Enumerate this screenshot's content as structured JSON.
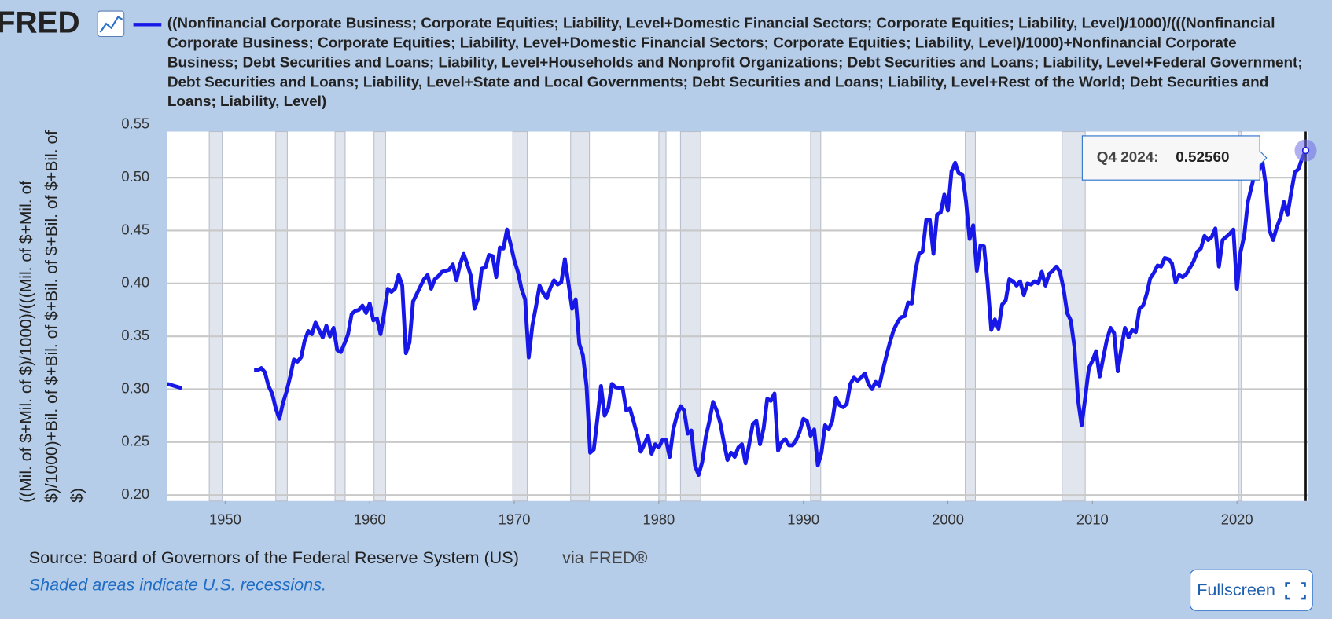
{
  "chart_data": {
    "type": "line",
    "logo": "FRED",
    "ylabel": "((Mil. of $+Mil. of $)/1000)/(((Mil. of $+Mil. of $)/1000)+Bil. of $+Bil. of $+Bil. of $+Bil. of $+Bil. of $)",
    "source": "Source: Board of Governors of the Federal Reserve System (US)",
    "source_via": "via FRED®",
    "note": "Shaded areas indicate U.S. recessions.",
    "button": "Fullscreen",
    "tooltip": {
      "label": "Q4 2024:",
      "value_label": "0.52560"
    },
    "xlim": [
      1946,
      2024.75
    ],
    "ylim": [
      0.2,
      0.55
    ],
    "xticks": [
      1950,
      1960,
      1970,
      1980,
      1990,
      2000,
      2010,
      2020
    ],
    "yticks": [
      {
        "value": 0.2,
        "label": "0.20"
      },
      {
        "value": 0.25,
        "label": "0.25"
      },
      {
        "value": 0.3,
        "label": "0.30"
      },
      {
        "value": 0.35,
        "label": "0.35"
      },
      {
        "value": 0.4,
        "label": "0.40"
      },
      {
        "value": 0.45,
        "label": "0.45"
      },
      {
        "value": 0.5,
        "label": "0.50"
      },
      {
        "value": 0.55,
        "label": "0.55"
      }
    ],
    "grid": true,
    "recessions": [
      [
        1948.9,
        1949.8
      ],
      [
        1953.5,
        1954.3
      ],
      [
        1957.6,
        1958.3
      ],
      [
        1960.3,
        1961.1
      ],
      [
        1969.9,
        1970.9
      ],
      [
        1973.9,
        1975.2
      ],
      [
        1980.0,
        1980.5
      ],
      [
        1981.5,
        1982.9
      ],
      [
        1990.5,
        1991.2
      ],
      [
        2001.2,
        2001.9
      ],
      [
        2007.9,
        2009.5
      ],
      [
        2020.1,
        2020.3
      ]
    ],
    "x": [
      1946,
      1946.5,
      1947,
      1949.5,
      1952,
      1952.25,
      1952.5,
      1952.75,
      1953,
      1953.25,
      1953.5,
      1953.75,
      1954,
      1954.25,
      1954.5,
      1954.75,
      1955,
      1955.25,
      1955.5,
      1955.75,
      1956,
      1956.25,
      1956.5,
      1956.75,
      1957,
      1957.25,
      1957.5,
      1957.75,
      1958,
      1958.25,
      1958.5,
      1958.75,
      1959,
      1959.25,
      1959.5,
      1959.75,
      1960,
      1960.25,
      1960.5,
      1960.75,
      1961,
      1961.25,
      1961.5,
      1961.75,
      1962,
      1962.25,
      1962.5,
      1962.75,
      1963,
      1963.25,
      1963.5,
      1963.75,
      1964,
      1964.25,
      1964.5,
      1964.75,
      1965,
      1965.25,
      1965.5,
      1965.75,
      1966,
      1966.25,
      1966.5,
      1966.75,
      1967,
      1967.25,
      1967.5,
      1967.75,
      1968,
      1968.25,
      1968.5,
      1968.75,
      1969,
      1969.25,
      1969.5,
      1969.75,
      1970,
      1970.25,
      1970.5,
      1970.75,
      1971,
      1971.25,
      1971.5,
      1971.75,
      1972,
      1972.25,
      1972.5,
      1972.75,
      1973,
      1973.25,
      1973.5,
      1973.75,
      1974,
      1974.25,
      1974.5,
      1974.75,
      1975,
      1975.25,
      1975.5,
      1975.75,
      1976,
      1976.25,
      1976.5,
      1976.75,
      1977,
      1977.25,
      1977.5,
      1977.75,
      1978,
      1978.25,
      1978.5,
      1978.75,
      1979,
      1979.25,
      1979.5,
      1979.75,
      1980,
      1980.25,
      1980.5,
      1980.75,
      1981,
      1981.25,
      1981.5,
      1981.75,
      1982,
      1982.25,
      1982.5,
      1982.75,
      1983,
      1983.25,
      1983.5,
      1983.75,
      1984,
      1984.25,
      1984.5,
      1984.75,
      1985,
      1985.25,
      1985.5,
      1985.75,
      1986,
      1986.25,
      1986.5,
      1986.75,
      1987,
      1987.25,
      1987.5,
      1987.75,
      1988,
      1988.25,
      1988.5,
      1988.75,
      1989,
      1989.25,
      1989.5,
      1989.75,
      1990,
      1990.25,
      1990.5,
      1990.75,
      1991,
      1991.25,
      1991.5,
      1991.75,
      1992,
      1992.25,
      1992.5,
      1992.75,
      1993,
      1993.25,
      1993.5,
      1993.75,
      1994,
      1994.25,
      1994.5,
      1994.75,
      1995,
      1995.25,
      1995.5,
      1995.75,
      1996,
      1996.25,
      1996.5,
      1996.75,
      1997,
      1997.25,
      1997.5,
      1997.75,
      1998,
      1998.25,
      1998.5,
      1998.75,
      1999,
      1999.25,
      1999.5,
      1999.75,
      2000,
      2000.25,
      2000.5,
      2000.75,
      2001,
      2001.25,
      2001.5,
      2001.75,
      2002,
      2002.25,
      2002.5,
      2002.75,
      2003,
      2003.25,
      2003.5,
      2003.75,
      2004,
      2004.25,
      2004.5,
      2004.75,
      2005,
      2005.25,
      2005.5,
      2005.75,
      2006,
      2006.25,
      2006.5,
      2006.75,
      2007,
      2007.25,
      2007.5,
      2007.75,
      2008,
      2008.25,
      2008.5,
      2008.75,
      2009,
      2009.25,
      2009.5,
      2009.75,
      2010,
      2010.25,
      2010.5,
      2010.75,
      2011,
      2011.25,
      2011.5,
      2011.75,
      2012,
      2012.25,
      2012.5,
      2012.75,
      2013,
      2013.25,
      2013.5,
      2013.75,
      2014,
      2014.25,
      2014.5,
      2014.75,
      2015,
      2015.25,
      2015.5,
      2015.75,
      2016,
      2016.25,
      2016.5,
      2016.75,
      2017,
      2017.25,
      2017.5,
      2017.75,
      2018,
      2018.25,
      2018.5,
      2018.75,
      2019,
      2019.25,
      2019.5,
      2019.75,
      2020,
      2020.25,
      2020.5,
      2020.75,
      2021,
      2021.25,
      2021.5,
      2021.75,
      2022,
      2022.25,
      2022.5,
      2022.75,
      2023,
      2023.25,
      2023.5,
      2023.75,
      2024,
      2024.25,
      2024.5,
      2024.75
    ],
    "series": [
      {
        "name": "((Nonfinancial Corporate Business; Corporate Equities; Liability, Level+Domestic Financial Sectors; Corporate Equities; Liability, Level)/1000)/(((Nonfinancial Corporate Business; Corporate Equities; Liability, Level+Domestic Financial Sectors; Corporate Equities; Liability, Level)/1000)+Nonfinancial Corporate Business; Debt Securities and Loans; Liability, Level+Households and Nonprofit Organizations; Debt Securities and Loans; Liability, Level+Federal Government; Debt Securities and Loans; Liability, Level+State and Local Governments; Debt Securities and Loans; Liability, Level+Rest of the World; Debt Securities and Loans; Liability, Level)",
        "color": "#1717e8",
        "values": [
          0.305,
          0.303,
          0.301,
          null,
          0.318,
          0.318,
          0.32,
          0.316,
          0.303,
          0.296,
          0.282,
          0.272,
          0.287,
          0.298,
          0.312,
          0.328,
          0.326,
          0.33,
          0.346,
          0.355,
          0.352,
          0.363,
          0.356,
          0.349,
          0.36,
          0.35,
          0.358,
          0.337,
          0.335,
          0.343,
          0.352,
          0.371,
          0.374,
          0.375,
          0.379,
          0.372,
          0.381,
          0.365,
          0.367,
          0.352,
          0.372,
          0.395,
          0.392,
          0.395,
          0.408,
          0.398,
          0.334,
          0.344,
          0.383,
          0.39,
          0.397,
          0.404,
          0.408,
          0.395,
          0.404,
          0.407,
          0.411,
          0.412,
          0.413,
          0.418,
          0.403,
          0.418,
          0.428,
          0.418,
          0.407,
          0.376,
          0.386,
          0.414,
          0.415,
          0.427,
          0.426,
          0.406,
          0.434,
          0.433,
          0.451,
          0.437,
          0.422,
          0.411,
          0.395,
          0.385,
          0.33,
          0.36,
          0.378,
          0.398,
          0.391,
          0.386,
          0.396,
          0.403,
          0.399,
          0.401,
          0.423,
          0.4,
          0.376,
          0.385,
          0.343,
          0.332,
          0.303,
          0.24,
          0.243,
          0.272,
          0.303,
          0.275,
          0.282,
          0.305,
          0.302,
          0.301,
          0.301,
          0.28,
          0.282,
          0.27,
          0.257,
          0.241,
          0.248,
          0.256,
          0.239,
          0.248,
          0.245,
          0.252,
          0.252,
          0.236,
          0.262,
          0.275,
          0.284,
          0.28,
          0.258,
          0.261,
          0.228,
          0.219,
          0.231,
          0.255,
          0.27,
          0.288,
          0.28,
          0.268,
          0.25,
          0.233,
          0.24,
          0.236,
          0.245,
          0.248,
          0.23,
          0.248,
          0.267,
          0.27,
          0.248,
          0.263,
          0.291,
          0.289,
          0.296,
          0.242,
          0.25,
          0.253,
          0.247,
          0.247,
          0.252,
          0.26,
          0.272,
          0.27,
          0.256,
          0.262,
          0.228,
          0.24,
          0.266,
          0.262,
          0.27,
          0.292,
          0.285,
          0.283,
          0.286,
          0.305,
          0.311,
          0.308,
          0.311,
          0.315,
          0.305,
          0.3,
          0.307,
          0.303,
          0.318,
          0.332,
          0.345,
          0.356,
          0.363,
          0.368,
          0.369,
          0.382,
          0.381,
          0.412,
          0.428,
          0.43,
          0.46,
          0.46,
          0.428,
          0.465,
          0.467,
          0.484,
          0.469,
          0.506,
          0.514,
          0.504,
          0.503,
          0.478,
          0.442,
          0.455,
          0.412,
          0.436,
          0.435,
          0.4,
          0.356,
          0.366,
          0.357,
          0.38,
          0.384,
          0.404,
          0.402,
          0.398,
          0.402,
          0.389,
          0.4,
          0.399,
          0.402,
          0.4,
          0.411,
          0.398,
          0.409,
          0.412,
          0.416,
          0.411,
          0.395,
          0.372,
          0.365,
          0.34,
          0.29,
          0.266,
          0.292,
          0.32,
          0.327,
          0.336,
          0.312,
          0.33,
          0.347,
          0.358,
          0.353,
          0.317,
          0.339,
          0.358,
          0.349,
          0.356,
          0.354,
          0.376,
          0.379,
          0.39,
          0.405,
          0.41,
          0.417,
          0.416,
          0.424,
          0.423,
          0.419,
          0.401,
          0.408,
          0.406,
          0.409,
          0.415,
          0.421,
          0.43,
          0.433,
          0.445,
          0.441,
          0.444,
          0.452,
          0.416,
          0.441,
          0.444,
          0.447,
          0.451,
          0.395,
          0.43,
          0.445,
          0.477,
          0.491,
          0.505,
          0.506,
          0.516,
          0.492,
          0.45,
          0.441,
          0.453,
          0.462,
          0.477,
          0.465,
          0.486,
          0.505,
          0.508,
          0.518,
          0.5256
        ]
      }
    ]
  }
}
